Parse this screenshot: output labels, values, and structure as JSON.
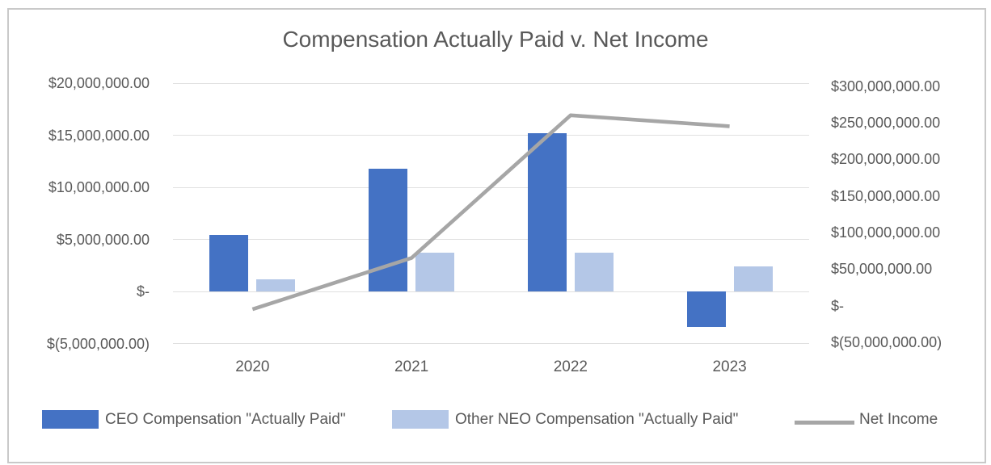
{
  "chart_data": {
    "type": "combo-bar-line",
    "title": "Compensation Actually Paid v. Net Income",
    "categories": [
      "2020",
      "2021",
      "2022",
      "2023"
    ],
    "series": [
      {
        "name": "CEO Compensation \"Actually Paid\"",
        "kind": "bar",
        "axis": "primary",
        "color": "#4472C4",
        "values": [
          5400000,
          11800000,
          15200000,
          -3400000
        ]
      },
      {
        "name": "Other NEO Compensation \"Actually Paid\"",
        "kind": "bar",
        "axis": "primary",
        "color": "#B4C7E7",
        "values": [
          1200000,
          3700000,
          3700000,
          2400000
        ]
      },
      {
        "name": "Net Income",
        "kind": "line",
        "axis": "secondary",
        "color": "#A6A6A6",
        "values": [
          -5000000,
          65000000,
          260000000,
          245000000
        ]
      }
    ],
    "primary_axis": {
      "min": -5000000,
      "max": 20000000,
      "step": 5000000,
      "ticks": [
        {
          "value": 20000000,
          "label": "$20,000,000.00"
        },
        {
          "value": 15000000,
          "label": "$15,000,000.00"
        },
        {
          "value": 10000000,
          "label": "$10,000,000.00"
        },
        {
          "value": 5000000,
          "label": "$5,000,000.00"
        },
        {
          "value": 0,
          "label": "$-"
        },
        {
          "value": -5000000,
          "label": "$(5,000,000.00)"
        }
      ]
    },
    "secondary_axis": {
      "min": -50000000,
      "max": 300000000,
      "step": 50000000,
      "ticks": [
        {
          "value": 300000000,
          "label": "$300,000,000.00"
        },
        {
          "value": 250000000,
          "label": "$250,000,000.00"
        },
        {
          "value": 200000000,
          "label": "$200,000,000.00"
        },
        {
          "value": 150000000,
          "label": "$150,000,000.00"
        },
        {
          "value": 100000000,
          "label": "$100,000,000.00"
        },
        {
          "value": 50000000,
          "label": "$50,000,000.00"
        },
        {
          "value": 0,
          "label": "$-"
        },
        {
          "value": -50000000,
          "label": "$(50,000,000.00)"
        }
      ]
    },
    "grid": true,
    "legend_position": "bottom",
    "colors": {
      "ceo_bar": "#4472C4",
      "neo_bar": "#B4C7E7",
      "net_income_line": "#A6A6A6",
      "gridline": "#e0e0e0",
      "text": "#595959",
      "frame_border": "#c9c9c9"
    }
  }
}
